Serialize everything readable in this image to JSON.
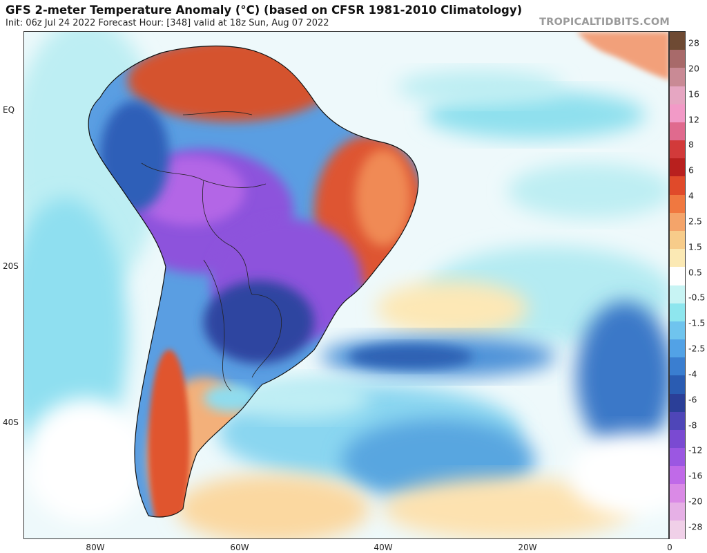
{
  "header": {
    "title": "GFS 2-meter Temperature Anomaly (°C) (based on CFSR 1981-2010 Climatology)",
    "subtitle": "Init: 06z Jul 24 2022   Forecast Hour: [348]   valid at 18z Sun, Aug 07 2022",
    "site": "TROPICALTIDBITS.COM"
  },
  "axes": {
    "lat_labels": [
      "EQ",
      "20S",
      "40S"
    ],
    "lon_labels": [
      "80W",
      "60W",
      "40W",
      "20W",
      "0"
    ]
  },
  "colorbar": {
    "labels": [
      "28",
      "20",
      "16",
      "12",
      "8",
      "6",
      "4",
      "2.5",
      "1.5",
      "0.5",
      "-0.5",
      "-1.5",
      "-2.5",
      "-4",
      "-6",
      "-8",
      "-12",
      "-16",
      "-20",
      "-28"
    ],
    "colors": [
      "#6e4a33",
      "#a86a6a",
      "#c98a95",
      "#e6a6c2",
      "#f29ac7",
      "#e06a8e",
      "#d23a3a",
      "#b8201e",
      "#e04a2a",
      "#f07840",
      "#f4a46a",
      "#f7cc8a",
      "#fbe9b4",
      "#ffffff",
      "#c8f4f4",
      "#8ee6ee",
      "#6fc4ee",
      "#52a2e6",
      "#3a7ed0",
      "#2a5cb2",
      "#2b3f98",
      "#4f46b8",
      "#7a4ad2",
      "#9b57e2",
      "#c06ae8",
      "#da8ae6",
      "#e6b0e6",
      "#f0d0e8"
    ]
  }
}
